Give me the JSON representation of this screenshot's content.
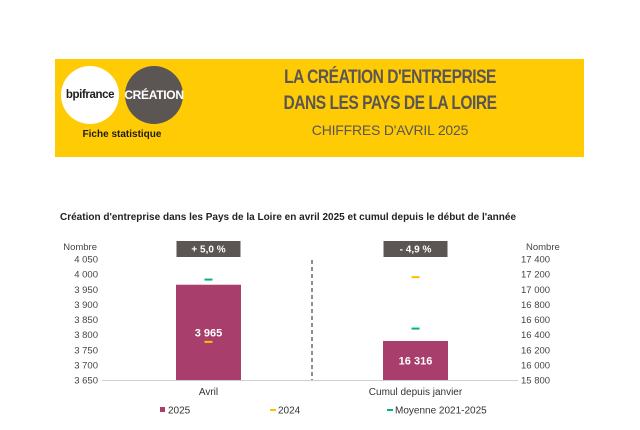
{
  "header": {
    "logo_bpifrance": "bpifrance",
    "logo_creation": "CRÉATION",
    "fiche": "Fiche statistique",
    "title_line1": "LA CRÉATION D'ENTREPRISE",
    "title_line2": "DANS LES PAYS DE LA LOIRE",
    "subtitle": "CHIFFRES D'AVRIL 2025"
  },
  "colors": {
    "banner": "#ffcb05",
    "bar": "#a83e6b",
    "line_2024": "#ffc000",
    "line_avg": "#00b38a",
    "badge": "#5b5653"
  },
  "chart_data": {
    "type": "bar",
    "title": "Création d'entreprise dans les Pays de la Loire en avril 2025 et cumul depuis le début de l'année",
    "panels": [
      {
        "category": "Avril",
        "ylabel": "Nombre",
        "axis_side": "left",
        "ylim": [
          3650,
          4050
        ],
        "ticks": [
          "4 050",
          "4 000",
          "3 950",
          "3 900",
          "3 850",
          "3 800",
          "3 750",
          "3 700",
          "3 650"
        ],
        "value_2025": 3965,
        "value_2025_label": "3 965",
        "value_2024": 3776,
        "value_avg": 3982,
        "badge": "+ 5,0 %"
      },
      {
        "category": "Cumul depuis janvier",
        "ylabel": "Nombre",
        "axis_side": "right",
        "ylim": [
          15800,
          17400
        ],
        "ticks": [
          "17 400",
          "17 200",
          "17 000",
          "16 800",
          "16 600",
          "16 400",
          "16 200",
          "16 000",
          "15 800"
        ],
        "value_2025": 16316,
        "value_2025_label": "16 316",
        "value_2024": 17160,
        "value_avg": 16480,
        "badge": "- 4,9 %"
      }
    ],
    "legend": [
      "2025",
      "2024",
      "Moyenne 2021-2025"
    ],
    "legend_position": "bottom"
  }
}
